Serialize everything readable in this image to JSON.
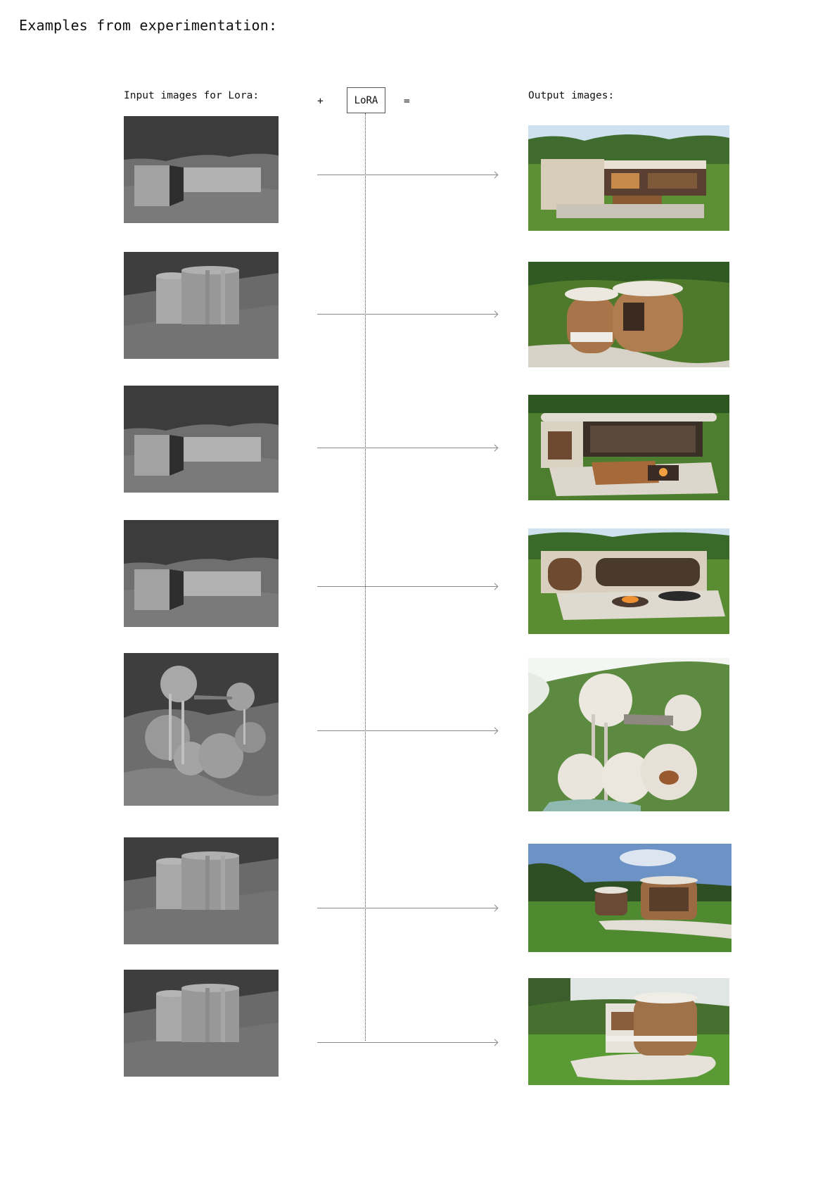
{
  "title": "Examples from experimentation:",
  "headers": {
    "input": "Input images for Lora:",
    "plus": "+",
    "lora": "LoRA",
    "equals": "=",
    "output": "Output images:"
  },
  "rows": [
    {
      "input_icon": "box-massing-render-icon",
      "output_icon": "modern-villa-render-icon"
    },
    {
      "input_icon": "curved-massing-render-icon",
      "output_icon": "curved-wood-villa-render-icon"
    },
    {
      "input_icon": "box-massing-render-icon",
      "output_icon": "courtyard-villa-render-icon"
    },
    {
      "input_icon": "box-massing-render-icon",
      "output_icon": "arched-villa-render-icon"
    },
    {
      "input_icon": "sphere-massing-render-icon",
      "output_icon": "sphere-house-render-icon"
    },
    {
      "input_icon": "curved-massing-render-icon",
      "output_icon": "cylinder-pavilions-render-icon"
    },
    {
      "input_icon": "curved-massing-render-icon",
      "output_icon": "rounded-villa-render-icon"
    }
  ]
}
